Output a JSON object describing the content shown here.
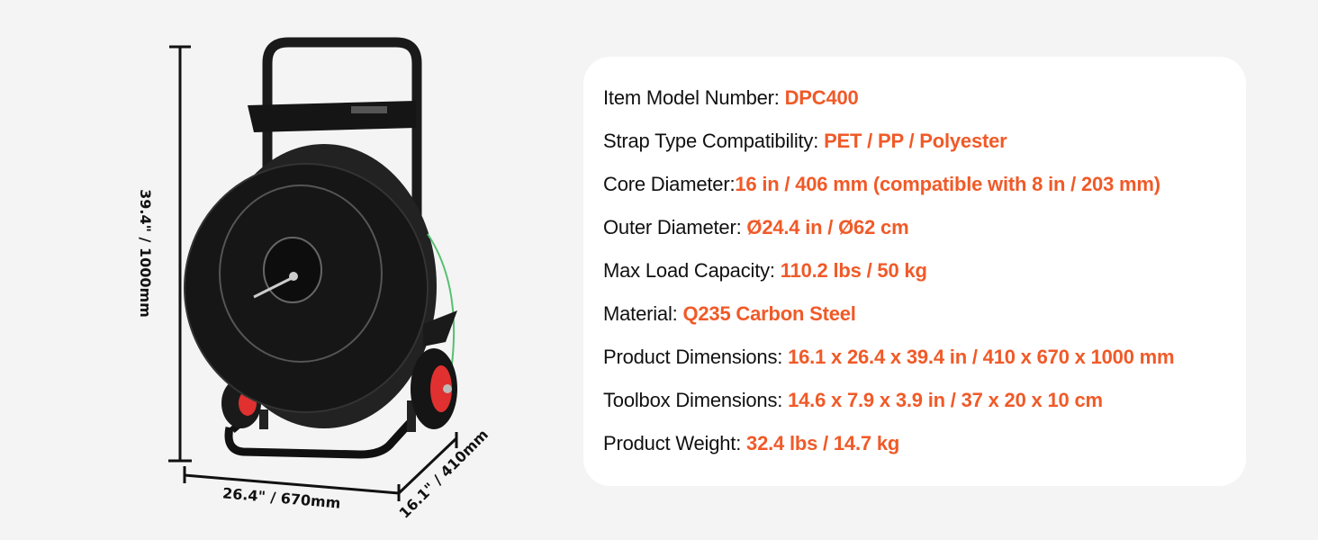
{
  "colors": {
    "accent": "#f05a28",
    "background": "#f4f4f4",
    "card": "#ffffff"
  },
  "product_image": {
    "dimensions": {
      "height": "39.4\" / 1000mm",
      "width": "26.4\" / 670mm",
      "depth": "16.1\" / 410mm"
    }
  },
  "specs": [
    {
      "label": "Item Model Number: ",
      "value": "DPC400"
    },
    {
      "label": "Strap Type Compatibility: ",
      "value": "PET / PP / Polyester"
    },
    {
      "label": "Core Diameter:",
      "value": "16 in / 406 mm (compatible with 8 in / 203 mm)"
    },
    {
      "label": "Outer Diameter: ",
      "value": "Ø24.4 in / Ø62 cm"
    },
    {
      "label": "Max Load Capacity: ",
      "value": "110.2 lbs / 50 kg"
    },
    {
      "label": "Material: ",
      "value": "Q235 Carbon Steel"
    },
    {
      "label": "Product Dimensions: ",
      "value": "16.1 x 26.4 x 39.4 in / 410 x 670 x 1000 mm"
    },
    {
      "label": "Toolbox Dimensions: ",
      "value": "14.6 x 7.9 x 3.9 in / 37 x 20 x 10 cm"
    },
    {
      "label": "Product Weight: ",
      "value": "32.4 lbs / 14.7 kg"
    }
  ]
}
